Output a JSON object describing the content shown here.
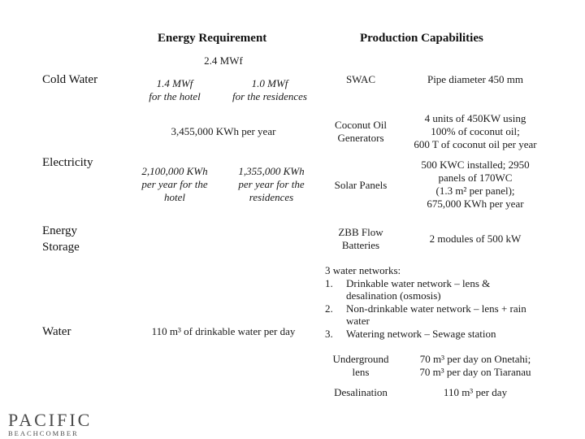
{
  "headers": {
    "energy_requirement": "Energy Requirement",
    "production_capabilities": "Production Capabilities"
  },
  "categories": {
    "cold_water": "Cold Water",
    "electricity": "Electricity",
    "energy_storage_line1": "Energy",
    "energy_storage_line2": "Storage",
    "water": "Water"
  },
  "requirements": {
    "cold_total": "2.4 MWf",
    "cold_hotel": "1.4 MWf",
    "cold_hotel_sub": "for the hotel",
    "cold_residences": "1.0 MWf",
    "cold_residences_sub": "for the residences",
    "elec_total": "3,455,000 KWh per year",
    "elec_hotel_l1": "2,100,000 KWh",
    "elec_hotel_l2": "per year for the",
    "elec_hotel_l3": "hotel",
    "elec_res_l1": "1,355,000 KWh",
    "elec_res_l2": "per year for the",
    "elec_res_l3": "residences",
    "water": "110 m³ of drinkable water per day"
  },
  "production": {
    "swac": "SWAC",
    "swac_detail": "Pipe diameter 450 mm",
    "coconut_l1": "Coconut Oil",
    "coconut_l2": "Generators",
    "coconut_detail_l1": "4 units of 450KW using",
    "coconut_detail_l2": "100% of coconut oil;",
    "coconut_detail_l3": "600 T of coconut oil per year",
    "solar": "Solar Panels",
    "solar_detail_l1": "500 KWC installed; 2950",
    "solar_detail_l2": "panels of 170WC",
    "solar_detail_l3": "(1.3 m² per panel);",
    "solar_detail_l4": "675,000 KWh per year",
    "zbb_l1": "ZBB Flow",
    "zbb_l2": "Batteries",
    "zbb_detail": "2 modules of 500 kW",
    "water_networks": {
      "intro": "3 water networks:",
      "items": [
        {
          "num": "1.",
          "l1": "Drinkable water network – lens &",
          "l2": "desalination (osmosis)"
        },
        {
          "num": "2.",
          "l1": "Non-drinkable water network – lens + rain",
          "l2": "water"
        },
        {
          "num": "3.",
          "l1": "Watering network – Sewage station",
          "l2": ""
        }
      ]
    },
    "underground_l1": "Underground",
    "underground_l2": "lens",
    "underground_detail_l1": "70 m³ per day on Onetahi;",
    "underground_detail_l2": "70 m³ per day on Tiaranau",
    "desalination": "Desalination",
    "desalination_detail": "110 m³ per day"
  },
  "logo": {
    "name": "PACIFIC",
    "sub": "BEACHCOMBER"
  }
}
